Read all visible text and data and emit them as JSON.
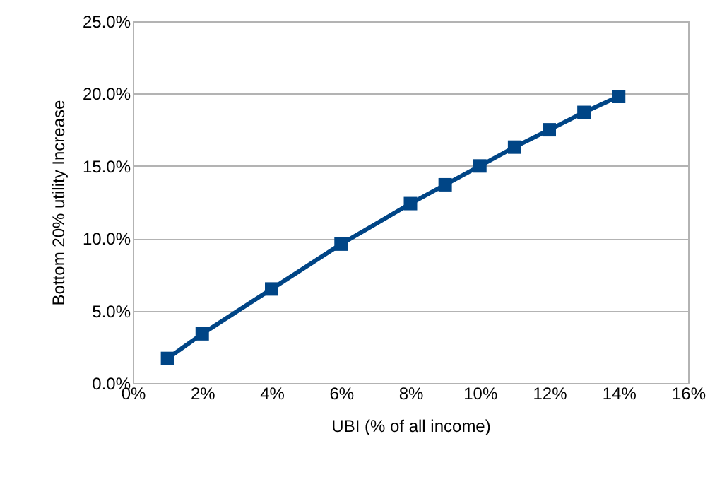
{
  "chart_data": {
    "type": "line",
    "xlabel": "UBI (% of all income)",
    "ylabel": "Bottom 20% utility Increase",
    "x": [
      1,
      2,
      4,
      6,
      8,
      9,
      10,
      11,
      12,
      13,
      14
    ],
    "series": [
      {
        "color": "#004586",
        "values": [
          1.7,
          3.4,
          6.5,
          9.6,
          12.4,
          13.7,
          15.0,
          16.3,
          17.5,
          18.7,
          19.8
        ]
      }
    ],
    "xlim": [
      0,
      16
    ],
    "xticks": [
      {
        "value": 0,
        "label": "0%"
      },
      {
        "value": 2,
        "label": "2%"
      },
      {
        "value": 4,
        "label": "4%"
      },
      {
        "value": 6,
        "label": "6%"
      },
      {
        "value": 8,
        "label": "8%"
      },
      {
        "value": 10,
        "label": "10%"
      },
      {
        "value": 12,
        "label": "12%"
      },
      {
        "value": 14,
        "label": "14%"
      },
      {
        "value": 16,
        "label": "16%"
      }
    ],
    "ylim": [
      0,
      25
    ],
    "yticks": [
      {
        "value": 0,
        "label": "0.0%"
      },
      {
        "value": 5,
        "label": "5.0%"
      },
      {
        "value": 10,
        "label": "10.0%"
      },
      {
        "value": 15,
        "label": "15.0%"
      },
      {
        "value": 20,
        "label": "20.0%"
      },
      {
        "value": 25,
        "label": "25.0%"
      }
    ],
    "grid": "y",
    "marker": "square",
    "line_style": "solid"
  }
}
